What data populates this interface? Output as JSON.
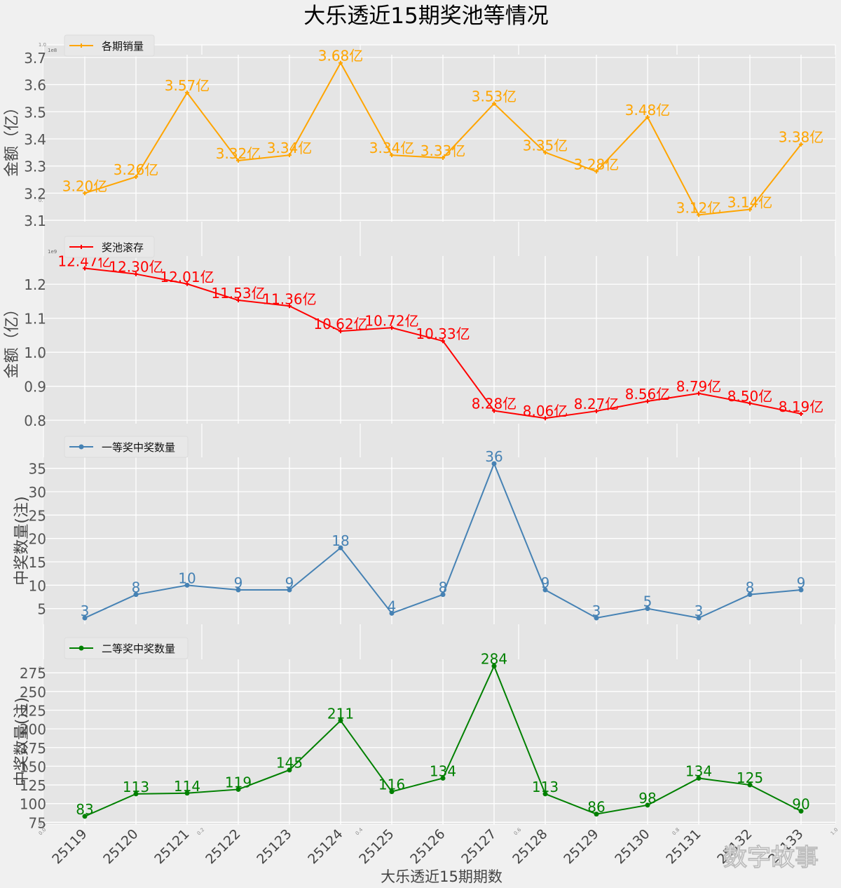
{
  "title": "大乐透近15期奖池等情况",
  "xlabel": "大乐透近15期期数",
  "watermark": "数字故事",
  "colors": {
    "sales": "#ffa500",
    "pool": "#ff0000",
    "first": "#4682b4",
    "second": "#008000",
    "axes_bg": "#e5e5e5",
    "grid": "#ffffff",
    "figure_bg": "#f0f0f0"
  },
  "background_axis": {
    "x_ticks": [
      "0.0",
      "0.2",
      "0.4",
      "0.6",
      "0.8",
      "1.0"
    ],
    "y_ticks": [
      "0.0",
      "0.2",
      "0.4",
      "0.6",
      "0.8",
      "1.0"
    ]
  },
  "chart_data": [
    {
      "type": "line",
      "legend": "各期销量",
      "legend_position": "top-left",
      "ylabel": "金额（亿）",
      "offset_text": "1e8",
      "x": [
        "25119",
        "25120",
        "25121",
        "25122",
        "25123",
        "25124",
        "25125",
        "25126",
        "25127",
        "25128",
        "25129",
        "25130",
        "25131",
        "25132",
        "25133"
      ],
      "values": [
        3.2,
        3.26,
        3.57,
        3.32,
        3.34,
        3.68,
        3.34,
        3.33,
        3.53,
        3.35,
        3.28,
        3.48,
        3.12,
        3.14,
        3.38
      ],
      "labels": [
        "3.20亿",
        "3.26亿",
        "3.57亿",
        "3.32亿",
        "3.34亿",
        "3.68亿",
        "3.34亿",
        "3.33亿",
        "3.53亿",
        "3.35亿",
        "3.28亿",
        "3.48亿",
        "3.12亿",
        "3.14亿",
        "3.38亿"
      ],
      "yticks": [
        3.1,
        3.2,
        3.3,
        3.4,
        3.5,
        3.6,
        3.7
      ],
      "ytick_labels": [
        "3.1",
        "3.2",
        "3.3",
        "3.4",
        "3.5",
        "3.6",
        "3.7"
      ],
      "ylim": [
        3.095,
        3.71
      ],
      "marker": "star",
      "grid": true
    },
    {
      "type": "line",
      "legend": "奖池滚存",
      "legend_position": "top-left",
      "ylabel": "金额（亿）",
      "offset_text": "1e9",
      "x": [
        "25119",
        "25120",
        "25121",
        "25122",
        "25123",
        "25124",
        "25125",
        "25126",
        "25127",
        "25128",
        "25129",
        "25130",
        "25131",
        "25132",
        "25133"
      ],
      "values": [
        12.47,
        12.3,
        12.01,
        11.53,
        11.36,
        10.62,
        10.72,
        10.33,
        8.28,
        8.06,
        8.27,
        8.56,
        8.79,
        8.5,
        8.19
      ],
      "labels": [
        "12.47亿",
        "12.30亿",
        "12.01亿",
        "11.53亿",
        "11.36亿",
        "10.62亿",
        "10.72亿",
        "10.33亿",
        "8.28亿",
        "8.06亿",
        "8.27亿",
        "8.56亿",
        "8.79亿",
        "8.50亿",
        "8.19亿"
      ],
      "yticks": [
        0.8,
        0.9,
        1.0,
        1.1,
        1.2
      ],
      "ytick_labels": [
        "0.8",
        "0.9",
        "1.0",
        "1.1",
        "1.2"
      ],
      "ylim": [
        0.79,
        1.283
      ],
      "value_scale": 0.1,
      "marker": "plus",
      "grid": true
    },
    {
      "type": "line",
      "legend": "一等奖中奖数量",
      "legend_position": "top-left",
      "ylabel": "中奖数量(注)",
      "x": [
        "25119",
        "25120",
        "25121",
        "25122",
        "25123",
        "25124",
        "25125",
        "25126",
        "25127",
        "25128",
        "25129",
        "25130",
        "25131",
        "25132",
        "25133"
      ],
      "values": [
        3,
        8,
        10,
        9,
        9,
        18,
        4,
        8,
        36,
        9,
        3,
        5,
        3,
        8,
        9
      ],
      "labels": [
        "3",
        "8",
        "10",
        "9",
        "9",
        "18",
        "4",
        "8",
        "36",
        "9",
        "3",
        "5",
        "3",
        "8",
        "9"
      ],
      "yticks": [
        5,
        10,
        15,
        20,
        25,
        30,
        35
      ],
      "ytick_labels": [
        "5",
        "10",
        "15",
        "20",
        "25",
        "30",
        "35"
      ],
      "ylim": [
        1.65,
        37.35
      ],
      "marker": "circle",
      "grid": true
    },
    {
      "type": "line",
      "legend": "二等奖中奖数量",
      "legend_position": "top-left",
      "ylabel": "中奖数量(注)",
      "xlabel": "大乐透近15期期数",
      "x": [
        "25119",
        "25120",
        "25121",
        "25122",
        "25123",
        "25124",
        "25125",
        "25126",
        "25127",
        "25128",
        "25129",
        "25130",
        "25131",
        "25132",
        "25133"
      ],
      "values": [
        83,
        113,
        114,
        119,
        145,
        211,
        116,
        134,
        284,
        113,
        86,
        98,
        134,
        125,
        90
      ],
      "labels": [
        "83",
        "113",
        "114",
        "119",
        "145",
        "211",
        "116",
        "134",
        "284",
        "113",
        "86",
        "98",
        "134",
        "125",
        "90"
      ],
      "yticks": [
        75,
        100,
        125,
        150,
        175,
        200,
        225,
        250,
        275
      ],
      "ytick_labels": [
        "75",
        "100",
        "125",
        "150",
        "175",
        "200",
        "225",
        "250",
        "275"
      ],
      "ylim": [
        72.5,
        293
      ],
      "marker": "circle",
      "grid": true
    }
  ]
}
